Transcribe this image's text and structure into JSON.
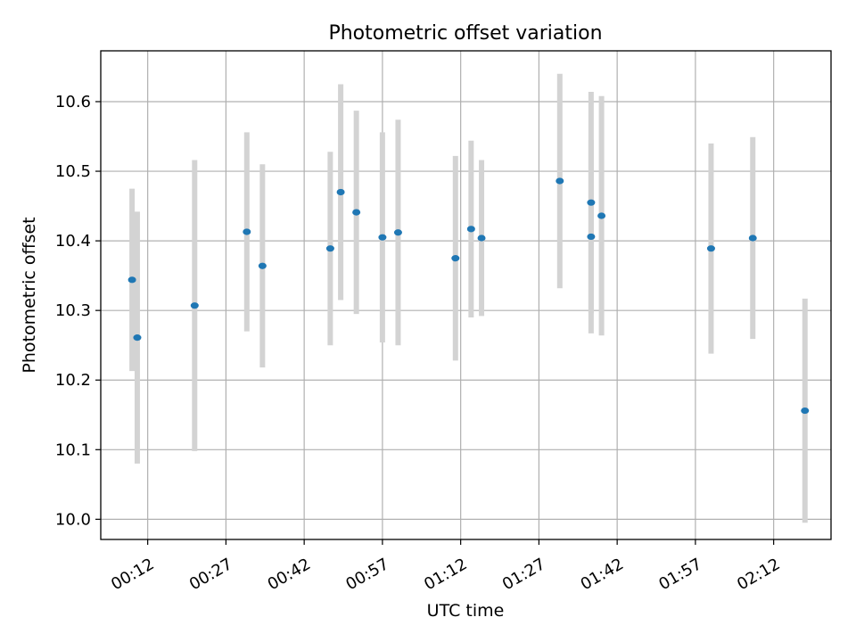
{
  "chart_data": {
    "type": "scatter",
    "title": "Photometric offset variation",
    "xlabel": "UTC time",
    "ylabel": "Photometric offset",
    "x_tick_labels": [
      "00:12",
      "00:27",
      "00:42",
      "00:57",
      "01:12",
      "01:27",
      "01:42",
      "01:57",
      "02:12"
    ],
    "y_tick_labels": [
      "10.0",
      "10.1",
      "10.2",
      "10.3",
      "10.4",
      "10.5",
      "10.6"
    ],
    "xlim": [
      "00:03",
      "02:23"
    ],
    "ylim": [
      9.971,
      10.673
    ],
    "grid": true,
    "marker_color": "#1f77b4",
    "errorbar_color": "#d3d3d3",
    "points": [
      {
        "x": "00:09",
        "y": 10.344,
        "err": 0.131
      },
      {
        "x": "00:10",
        "y": 10.261,
        "err": 0.181
      },
      {
        "x": "00:21",
        "y": 10.307,
        "err": 0.209
      },
      {
        "x": "00:31",
        "y": 10.413,
        "err": 0.143
      },
      {
        "x": "00:34",
        "y": 10.364,
        "err": 0.146
      },
      {
        "x": "00:47",
        "y": 10.389,
        "err": 0.139
      },
      {
        "x": "00:49",
        "y": 10.47,
        "err": 0.155
      },
      {
        "x": "00:52",
        "y": 10.441,
        "err": 0.146
      },
      {
        "x": "00:57",
        "y": 10.405,
        "err": 0.151
      },
      {
        "x": "01:00",
        "y": 10.412,
        "err": 0.162
      },
      {
        "x": "01:11",
        "y": 10.375,
        "err": 0.147
      },
      {
        "x": "01:14",
        "y": 10.417,
        "err": 0.127
      },
      {
        "x": "01:16",
        "y": 10.404,
        "err": 0.112
      },
      {
        "x": "01:31",
        "y": 10.486,
        "err": 0.154
      },
      {
        "x": "01:37",
        "y": 10.455,
        "err": 0.159
      },
      {
        "x": "01:37",
        "y": 10.406,
        "err": 0.139
      },
      {
        "x": "01:39",
        "y": 10.436,
        "err": 0.172
      },
      {
        "x": "02:00",
        "y": 10.389,
        "err": 0.151
      },
      {
        "x": "02:08",
        "y": 10.404,
        "err": 0.145
      },
      {
        "x": "02:18",
        "y": 10.156,
        "err": 0.161
      }
    ]
  }
}
